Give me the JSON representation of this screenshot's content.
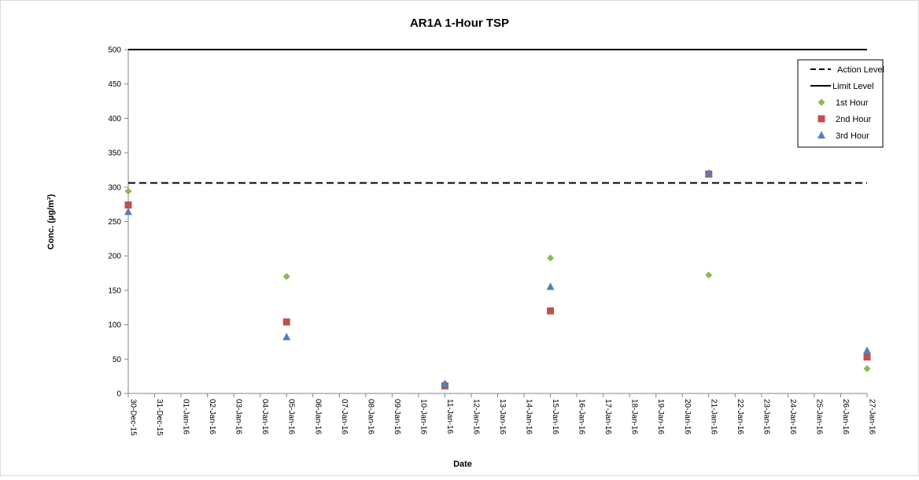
{
  "chart_data": {
    "type": "scatter",
    "title": "AR1A 1-Hour TSP",
    "xlabel": "Date",
    "ylabel": "Conc. (µg/m³)",
    "ylim": [
      0,
      500
    ],
    "y_ticks": [
      0,
      50,
      100,
      150,
      200,
      250,
      300,
      350,
      400,
      450,
      500
    ],
    "x_ticks": [
      "30-Dec-15",
      "31-Dec-15",
      "01-Jan-16",
      "02-Jan-16",
      "03-Jan-16",
      "04-Jan-16",
      "05-Jan-16",
      "06-Jan-16",
      "07-Jan-16",
      "08-Jan-16",
      "09-Jan-16",
      "10-Jan-16",
      "11-Jan-16",
      "12-Jan-16",
      "13-Jan-16",
      "14-Jan-16",
      "15-Jan-16",
      "16-Jan-16",
      "17-Jan-16",
      "18-Jan-16",
      "19-Jan-16",
      "20-Jan-16",
      "21-Jan-16",
      "22-Jan-16",
      "23-Jan-16",
      "24-Jan-16",
      "25-Jan-16",
      "26-Jan-16",
      "27-Jan-16"
    ],
    "x_range": [
      "30-Dec-15",
      "27-Jan-16"
    ],
    "grid": false,
    "legend_position": "top-right",
    "reference_lines": [
      {
        "name": "Action Level",
        "value": 306,
        "style": "dashed",
        "color": "#000000"
      },
      {
        "name": "Limit Level",
        "value": 500,
        "style": "solid",
        "color": "#000000"
      }
    ],
    "series": [
      {
        "name": "1st Hour",
        "marker": "diamond",
        "color": "#8DB954",
        "x": [
          "30-Dec-15",
          "05-Jan-16",
          "11-Jan-16",
          "15-Jan-16",
          "21-Jan-16",
          "27-Jan-16"
        ],
        "y": [
          294,
          170,
          14,
          197,
          172,
          36
        ]
      },
      {
        "name": "2nd Hour",
        "marker": "square",
        "color": "#C0504D",
        "x": [
          "30-Dec-15",
          "05-Jan-16",
          "11-Jan-16",
          "15-Jan-16",
          "21-Jan-16",
          "27-Jan-16"
        ],
        "y": [
          274,
          104,
          11,
          120,
          319,
          53
        ]
      },
      {
        "name": "3rd Hour",
        "marker": "triangle",
        "color": "#4F81BD",
        "x": [
          "30-Dec-15",
          "05-Jan-16",
          "11-Jan-16",
          "15-Jan-16",
          "21-Jan-16",
          "27-Jan-16"
        ],
        "y": [
          264,
          82,
          14,
          155,
          320,
          62
        ]
      }
    ]
  }
}
